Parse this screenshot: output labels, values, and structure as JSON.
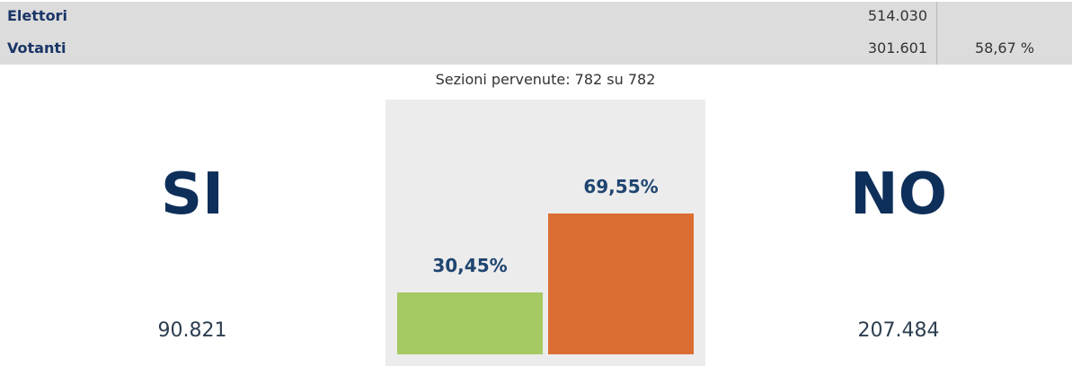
{
  "table": {
    "rows": [
      {
        "label": "Elettori",
        "value": "514.030"
      },
      {
        "label": "Votanti",
        "value": "301.601",
        "percent": "58,67 %"
      }
    ]
  },
  "sections": "Sezioni pervenute: 782 su 782",
  "chart_data": {
    "type": "bar",
    "categories": [
      "SI",
      "NO"
    ],
    "values": [
      30.45,
      69.55
    ],
    "value_labels": [
      "30,45%",
      "69,55%"
    ],
    "colors": [
      "#a5c963",
      "#db6e33"
    ],
    "votes": [
      "90.821",
      "207.484"
    ]
  }
}
